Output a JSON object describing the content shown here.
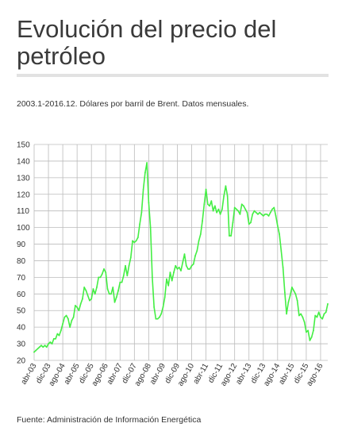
{
  "title": "Evolución del precio del petróleo",
  "subtitle": "2003.1-2016.12. Dólares por barril de Brent. Datos mensuales.",
  "source": "Fuente: Administración de Información Energética",
  "colors": {
    "line": "#44ee44",
    "grid": "#bbbbbb",
    "rule": "#e2e2e2"
  },
  "chart_data": {
    "type": "line",
    "title": "",
    "xlabel": "",
    "ylabel": "",
    "ylim": [
      20,
      150
    ],
    "yticks": [
      20,
      30,
      40,
      50,
      60,
      70,
      80,
      90,
      100,
      110,
      120,
      130,
      140,
      150
    ],
    "xticks": [
      "abr-03",
      "dic-03",
      "ago-04",
      "abr-05",
      "dic-05",
      "ago-06",
      "abr-07",
      "dic-07",
      "ago-08",
      "abr-09",
      "dic-09",
      "ago-10",
      "abr-11",
      "dic-11",
      "ago-12",
      "abr-13",
      "dic-13",
      "ago-14",
      "abr-15",
      "dic-15",
      "ago-16"
    ],
    "grid": true,
    "legend": "none",
    "series": [
      {
        "x": [
          "2003-04",
          "2003-05",
          "2003-06",
          "2003-07",
          "2003-08",
          "2003-09",
          "2003-10",
          "2003-11",
          "2003-12",
          "2004-01",
          "2004-02",
          "2004-03",
          "2004-04",
          "2004-05",
          "2004-06",
          "2004-07",
          "2004-08",
          "2004-09",
          "2004-10",
          "2004-11",
          "2004-12",
          "2005-01",
          "2005-02",
          "2005-03",
          "2005-04",
          "2005-05",
          "2005-06",
          "2005-07",
          "2005-08",
          "2005-09",
          "2005-10",
          "2005-11",
          "2005-12",
          "2006-01",
          "2006-02",
          "2006-03",
          "2006-04",
          "2006-05",
          "2006-06",
          "2006-07",
          "2006-08",
          "2006-09",
          "2006-10",
          "2006-11",
          "2006-12",
          "2007-01",
          "2007-02",
          "2007-03",
          "2007-04",
          "2007-05",
          "2007-06",
          "2007-07",
          "2007-08",
          "2007-09",
          "2007-10",
          "2007-11",
          "2007-12",
          "2008-01",
          "2008-02",
          "2008-03",
          "2008-04",
          "2008-05",
          "2008-06",
          "2008-07",
          "2008-08",
          "2008-09",
          "2008-10",
          "2008-11",
          "2008-12",
          "2009-01",
          "2009-02",
          "2009-03",
          "2009-04",
          "2009-05",
          "2009-06",
          "2009-07",
          "2009-08",
          "2009-09",
          "2009-10",
          "2009-11",
          "2009-12",
          "2010-01",
          "2010-02",
          "2010-03",
          "2010-04",
          "2010-05",
          "2010-06",
          "2010-07",
          "2010-08",
          "2010-09",
          "2010-10",
          "2010-11",
          "2010-12",
          "2011-01",
          "2011-02",
          "2011-03",
          "2011-04",
          "2011-05",
          "2011-06",
          "2011-07",
          "2011-08",
          "2011-09",
          "2011-10",
          "2011-11",
          "2011-12",
          "2012-01",
          "2012-02",
          "2012-03",
          "2012-04",
          "2012-05",
          "2012-06",
          "2012-07",
          "2012-08",
          "2012-09",
          "2012-10",
          "2012-11",
          "2012-12",
          "2013-01",
          "2013-02",
          "2013-03",
          "2013-04",
          "2013-05",
          "2013-06",
          "2013-07",
          "2013-08",
          "2013-09",
          "2013-10",
          "2013-11",
          "2013-12",
          "2014-01",
          "2014-02",
          "2014-03",
          "2014-04",
          "2014-05",
          "2014-06",
          "2014-07",
          "2014-08",
          "2014-09",
          "2014-10",
          "2014-11",
          "2014-12",
          "2015-01",
          "2015-02",
          "2015-03",
          "2015-04",
          "2015-05",
          "2015-06",
          "2015-07",
          "2015-08",
          "2015-09",
          "2015-10",
          "2015-11",
          "2015-12",
          "2016-01",
          "2016-02",
          "2016-03",
          "2016-04",
          "2016-05",
          "2016-06",
          "2016-07",
          "2016-08",
          "2016-09",
          "2016-10",
          "2016-11",
          "2016-12"
        ],
        "values": [
          25,
          26,
          27,
          28,
          29,
          28,
          29,
          28,
          30,
          31,
          30,
          33,
          33,
          36,
          35,
          38,
          42,
          46,
          47,
          45,
          40,
          44,
          46,
          53,
          52,
          50,
          54,
          57,
          64,
          62,
          59,
          56,
          57,
          63,
          60,
          64,
          70,
          70,
          72,
          75,
          73,
          63,
          60,
          60,
          64,
          55,
          58,
          62,
          67,
          67,
          71,
          77,
          71,
          77,
          82,
          92,
          91,
          92,
          94,
          102,
          109,
          123,
          133,
          139,
          115,
          100,
          70,
          52,
          45,
          45,
          46,
          48,
          52,
          58,
          69,
          65,
          73,
          68,
          73,
          77,
          75,
          76,
          74,
          79,
          84,
          77,
          75,
          75,
          77,
          78,
          83,
          86,
          92,
          96,
          104,
          114,
          123,
          114,
          113,
          116,
          110,
          113,
          109,
          111,
          108,
          111,
          119,
          125,
          119,
          95,
          95,
          103,
          112,
          111,
          110,
          108,
          114,
          113,
          111,
          109,
          102,
          103,
          108,
          110,
          109,
          108,
          109,
          108,
          107,
          108,
          108,
          107,
          109,
          111,
          112,
          107,
          101,
          96,
          86,
          76,
          61,
          48,
          55,
          59,
          64,
          62,
          60,
          56,
          47,
          48,
          46,
          43,
          37,
          38,
          32,
          34,
          38,
          47,
          46,
          49,
          46,
          45,
          48,
          49,
          54
        ]
      }
    ]
  }
}
